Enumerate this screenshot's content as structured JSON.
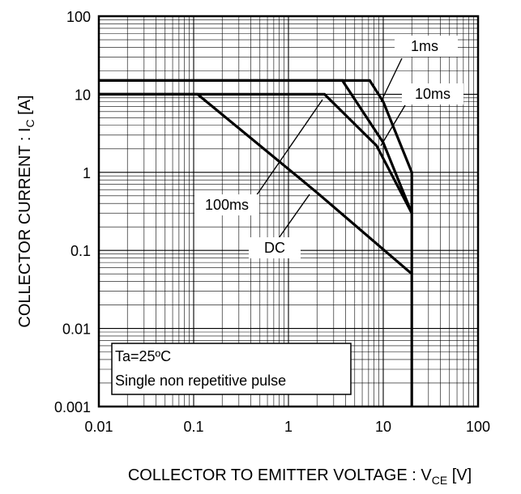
{
  "chart_data": {
    "type": "line",
    "title": "",
    "xlabel": "COLLECTOR TO EMITTER VOLTAGE : V",
    "xlabel_sub": "CE",
    "xlabel_unit": " [V]",
    "ylabel": "COLLECTOR CURRENT :  I",
    "ylabel_sub": "C",
    "ylabel_unit": " [A]",
    "xscale": "log",
    "yscale": "log",
    "xlim": [
      0.01,
      100
    ],
    "ylim": [
      0.001,
      100
    ],
    "grid": true,
    "x_ticks": [
      "0.01",
      "0.1",
      "1",
      "10",
      "100"
    ],
    "y_ticks": [
      "0.001",
      "0.01",
      "0.1",
      "1",
      "10",
      "100"
    ],
    "conditions": [
      "Ta=25ºC",
      "Single non repetitive pulse"
    ],
    "series": [
      {
        "name": "1ms",
        "x": [
          0.01,
          7.2,
          10,
          20,
          20
        ],
        "y": [
          15,
          15,
          8,
          1.0,
          0.001
        ]
      },
      {
        "name": "10ms",
        "x": [
          0.01,
          3.7,
          10,
          20
        ],
        "y": [
          15,
          15,
          2.4,
          0.3
        ]
      },
      {
        "name": "100ms",
        "x": [
          0.01,
          2.4,
          8.5,
          20
        ],
        "y": [
          10,
          10,
          2.2,
          0.3
        ]
      },
      {
        "name": "DC",
        "x": [
          0.01,
          0.11,
          2,
          20
        ],
        "y": [
          10,
          10,
          0.55,
          0.05
        ]
      }
    ],
    "labels": [
      {
        "text": "1ms",
        "series": "1ms"
      },
      {
        "text": "10ms",
        "series": "10ms"
      },
      {
        "text": "100ms",
        "series": "100ms"
      },
      {
        "text": "DC",
        "series": "DC"
      }
    ]
  }
}
